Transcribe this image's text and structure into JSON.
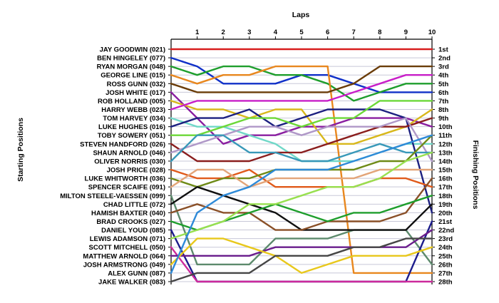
{
  "chart_data": {
    "type": "line",
    "title": "",
    "xlabel": "Laps",
    "ylabel": "Starting Positions",
    "ylabel_right": "Finishing Positions",
    "laps": [
      1,
      2,
      3,
      4,
      5,
      6,
      7,
      8,
      9,
      10
    ],
    "xlim": [
      0,
      10
    ],
    "ylim": [
      1,
      28
    ],
    "finishing_labels": [
      "1st",
      "2nd",
      "3rd",
      "4th",
      "5th",
      "6th",
      "7th",
      "8th",
      "9th",
      "10th",
      "11th",
      "12th",
      "13th",
      "14th",
      "15th",
      "16th",
      "17th",
      "18th",
      "19th",
      "20th",
      "21st",
      "22nd",
      "23rd",
      "24th",
      "25th",
      "26th",
      "27th",
      "28th"
    ],
    "series": [
      {
        "name": "JAY GOODWIN (021)",
        "color": "#d81e1e",
        "positions": [
          1,
          1,
          1,
          1,
          1,
          1,
          1,
          1,
          1,
          1,
          1
        ]
      },
      {
        "name": "BEN HINGELEY (077)",
        "color": "#1030c8",
        "positions": [
          2,
          3,
          5,
          5,
          5,
          4,
          4,
          5,
          6,
          6,
          6
        ]
      },
      {
        "name": "RYAN MORGAN (048)",
        "color": "#1e9e2c",
        "positions": [
          3,
          4,
          3,
          3,
          4,
          4,
          5,
          7,
          6,
          5,
          5
        ]
      },
      {
        "name": "GEORGE LINE (015)",
        "color": "#e8871e",
        "positions": [
          4,
          5,
          4,
          4,
          3,
          3,
          3,
          27,
          27,
          27,
          27
        ]
      },
      {
        "name": "ROSS GUNN (032)",
        "color": "#6a3c08",
        "positions": [
          5,
          6,
          6,
          6,
          6,
          6,
          6,
          5,
          3,
          3,
          3
        ]
      },
      {
        "name": "JOSH WHITE (017)",
        "color": "#8a1ea0",
        "positions": [
          6,
          9,
          12,
          11,
          11,
          10,
          10,
          9,
          9,
          9,
          10
        ]
      },
      {
        "name": "ROB HOLLAND (005)",
        "color": "#d8b81c",
        "positions": [
          7,
          8,
          8,
          9,
          8,
          8,
          12,
          12,
          11,
          10,
          8
        ]
      },
      {
        "name": "HARRY WEBB (023)",
        "color": "#c81ec8",
        "positions": [
          8,
          7,
          7,
          7,
          7,
          7,
          7,
          6,
          5,
          4,
          4
        ]
      },
      {
        "name": "TOM HARVEY (034)",
        "color": "#70d8c8",
        "positions": [
          9,
          10,
          10,
          11,
          12,
          14,
          14,
          14,
          13,
          12,
          12
        ]
      },
      {
        "name": "LUKE HUGHES (016)",
        "color": "#1c2080",
        "positions": [
          10,
          9,
          9,
          8,
          10,
          9,
          8,
          8,
          8,
          9,
          20
        ]
      },
      {
        "name": "TOBY SOWERY (051)",
        "color": "#6cd838",
        "positions": [
          11,
          11,
          10,
          9,
          9,
          10,
          9,
          9,
          7,
          7,
          7
        ]
      },
      {
        "name": "STEVEN HANDFORD (026)",
        "color": "#8a1e1e",
        "positions": [
          12,
          14,
          14,
          14,
          13,
          13,
          12,
          11,
          10,
          10,
          9
        ]
      },
      {
        "name": "SHAUN ARNOLD (046)",
        "color": "#b098c8",
        "positions": [
          13,
          12,
          11,
          10,
          10,
          11,
          10,
          10,
          10,
          9,
          14
        ]
      },
      {
        "name": "OLIVER NORRIS (030)",
        "color": "#3898b8",
        "positions": [
          14,
          11,
          11,
          13,
          13,
          14,
          14,
          13,
          12,
          13,
          13
        ]
      },
      {
        "name": "JOSH PRICE (028)",
        "color": "#e05a1a",
        "positions": [
          15,
          16,
          16,
          15,
          17,
          17,
          17,
          17,
          16,
          16,
          17
        ]
      },
      {
        "name": "LUKE WHITWORTH (036)",
        "color": "#6e8a16",
        "positions": [
          16,
          17,
          16,
          16,
          15,
          15,
          15,
          15,
          14,
          14,
          11
        ]
      },
      {
        "name": "SPENCER SCAIFE (091)",
        "color": "#e3a478",
        "positions": [
          17,
          15,
          15,
          17,
          16,
          16,
          16,
          16,
          15,
          15,
          15
        ]
      },
      {
        "name": "MILTON STEELE-VAESSEN (099)",
        "color": "#5c8a6c",
        "positions": [
          18,
          26,
          26,
          26,
          23,
          23,
          23,
          22,
          22,
          22,
          26
        ]
      },
      {
        "name": "CHAD LITTLE (072)",
        "color": "#101010",
        "positions": [
          19,
          17,
          18,
          19,
          20,
          22,
          22,
          22,
          22,
          22,
          19
        ]
      },
      {
        "name": "HAMISH BAXTER (040)",
        "color": "#8a5028",
        "positions": [
          20,
          19,
          20,
          20,
          22,
          22,
          21,
          21,
          21,
          20,
          16
        ]
      },
      {
        "name": "BRAD CROOKS (027)",
        "color": "#1e9e2c",
        "positions": [
          21,
          22,
          21,
          20,
          19,
          20,
          21,
          20,
          20,
          19,
          18
        ]
      },
      {
        "name": "DANIEL YOUD (085)",
        "color": "#1c1c8c",
        "positions": [
          22,
          28,
          28,
          28,
          28,
          28,
          28,
          28,
          28,
          28,
          21
        ]
      },
      {
        "name": "LEWIS ADAMSON (071)",
        "color": "#98e050",
        "positions": [
          23,
          22,
          21,
          19,
          19,
          18,
          17,
          17,
          16,
          14,
          13
        ]
      },
      {
        "name": "SCOTT MITCHELL (050)",
        "color": "#cc2a9c",
        "positions": [
          24,
          28,
          28,
          28,
          28,
          28,
          28,
          28,
          28,
          28,
          28
        ]
      },
      {
        "name": "MATTHEW ARNOLD (064)",
        "color": "#6a1c8c",
        "positions": [
          25,
          25,
          25,
          25,
          24,
          24,
          24,
          24,
          24,
          24,
          22
        ]
      },
      {
        "name": "JOSH ARMSTRONG (049)",
        "color": "#e8c81c",
        "positions": [
          26,
          23,
          23,
          24,
          25,
          27,
          26,
          25,
          25,
          25,
          24
        ]
      },
      {
        "name": "ALEX GUNN (087)",
        "color": "#2e8ad8",
        "positions": [
          27,
          20,
          18,
          17,
          15,
          15,
          15,
          14,
          13,
          12,
          11
        ]
      },
      {
        "name": "JAKE WALKER (083)",
        "color": "#464646",
        "positions": [
          28,
          27,
          27,
          27,
          25,
          25,
          25,
          24,
          24,
          23,
          23
        ]
      }
    ]
  }
}
